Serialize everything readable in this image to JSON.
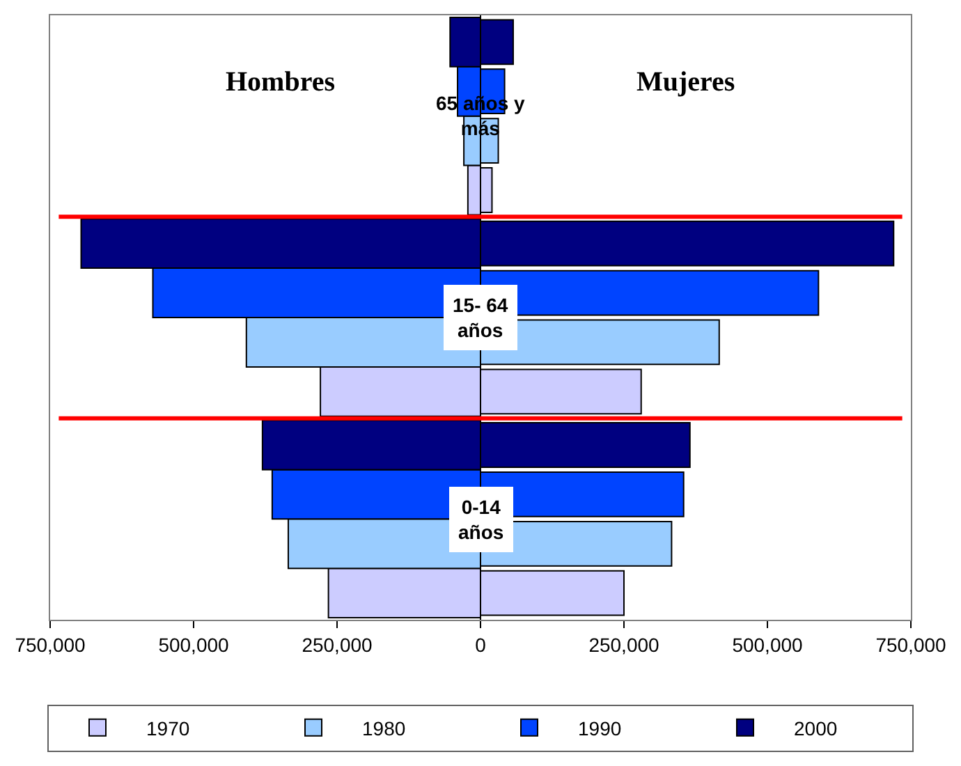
{
  "chart_data": {
    "type": "bar",
    "orientation": "horizontal",
    "categories": [
      "65 años y más",
      "15- 64 años",
      "0-14 años"
    ],
    "series": [
      {
        "name": "1970",
        "color": "#ccccff",
        "values": [
          -22000,
          -279000,
          -265000
        ]
      },
      {
        "color": "#ccccff",
        "values": [
          20000,
          280000,
          250000
        ]
      },
      {
        "name": "1980",
        "color": "#99ccff",
        "values": [
          -29000,
          -408000,
          -335000
        ]
      },
      {
        "color": "#99ccff",
        "values": [
          31000,
          416000,
          333000
        ]
      },
      {
        "name": "1990",
        "color": "#0044ff",
        "values": [
          -40000,
          -571000,
          -363000
        ]
      },
      {
        "color": "#0044ff",
        "values": [
          42000,
          589000,
          354000
        ]
      },
      {
        "name": "2000",
        "color": "#000080",
        "values": [
          -53000,
          -696000,
          -380000
        ]
      },
      {
        "color": "#000080",
        "values": [
          57000,
          720000,
          365000
        ]
      }
    ],
    "xlim": [
      -750000,
      750000
    ],
    "xticks": [
      {
        "value": -750000,
        "label": "750,000"
      },
      {
        "value": -500000,
        "label": "500,000"
      },
      {
        "value": -250000,
        "label": "250,000"
      },
      0,
      {
        "value": 250000,
        "label": "250,000"
      },
      {
        "value": 500000,
        "label": "500,000"
      },
      {
        "value": 750000,
        "label": "750,000"
      }
    ],
    "tick_labels": "x",
    "annotations": [
      "Hombres",
      "Mujeres"
    ],
    "legend": "bottom"
  }
}
